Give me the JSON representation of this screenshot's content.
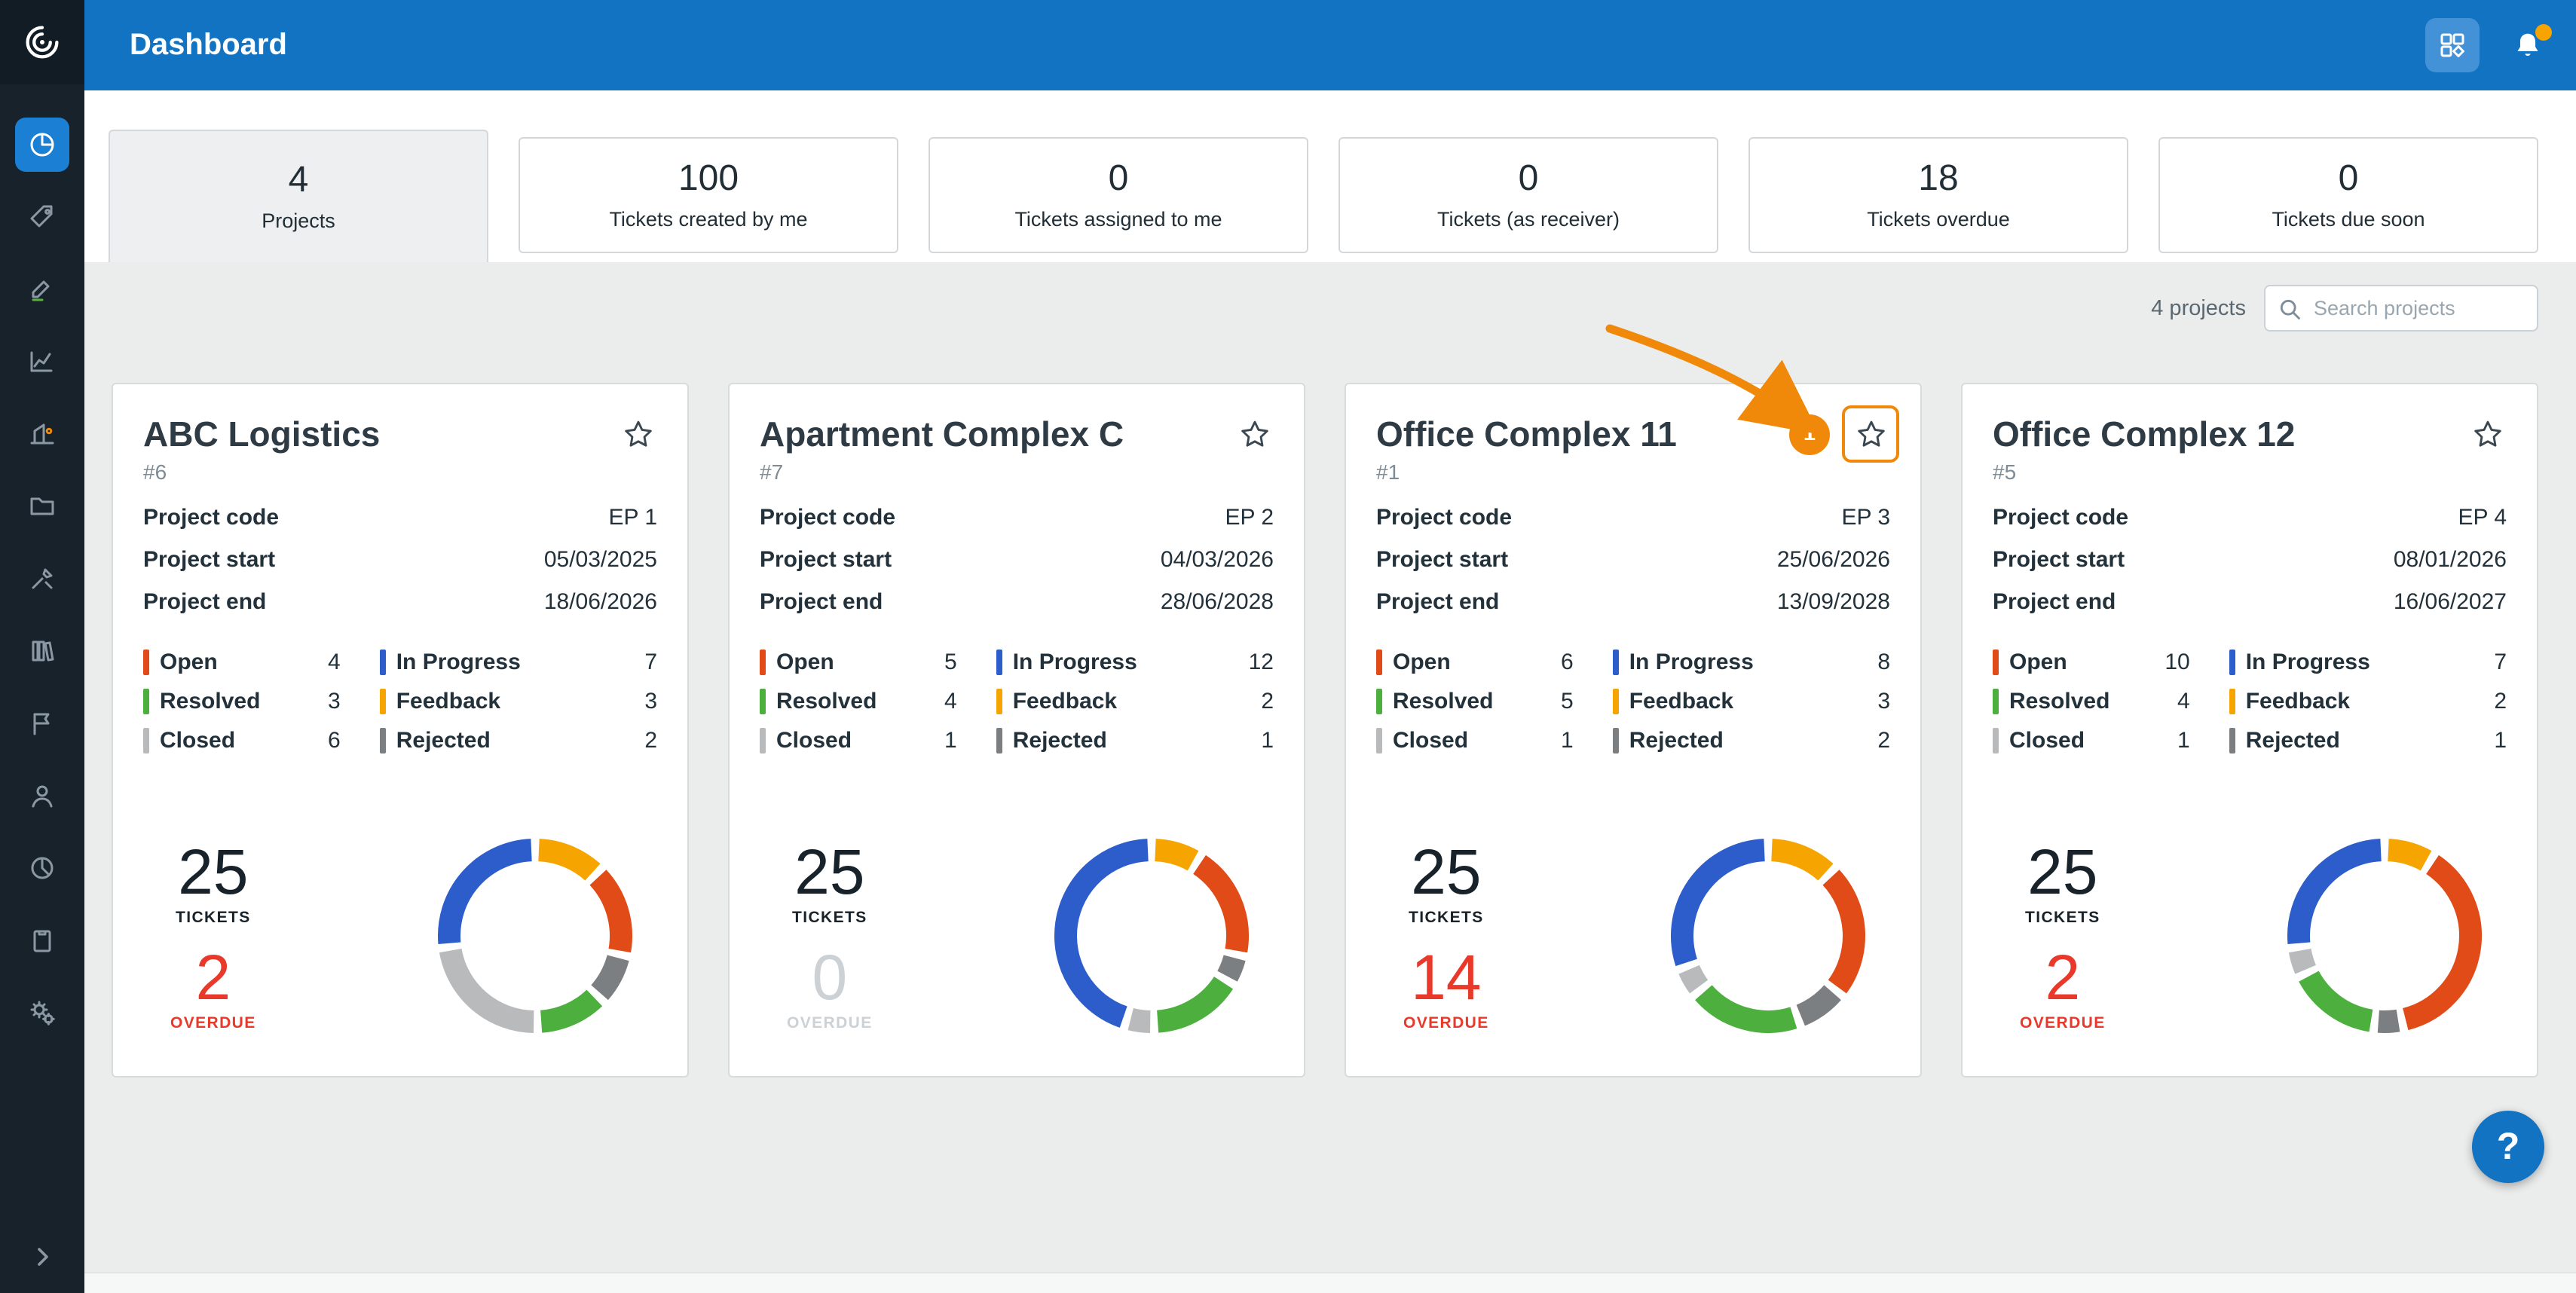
{
  "app": {
    "header_color": "#1273c2",
    "accent_orange": "#f0890a",
    "overdue_red": "#e8392a",
    "muted_gray": "#ccd1d5"
  },
  "header": {
    "title": "Dashboard",
    "icons": [
      {
        "name": "apps-icon"
      },
      {
        "name": "notifications-icon",
        "badge_dot": true
      }
    ]
  },
  "sidebar": {
    "items": [
      {
        "id": "dashboard",
        "icon": "dashboard-icon",
        "active": true
      },
      {
        "id": "tags",
        "icon": "tags-icon"
      },
      {
        "id": "tasks",
        "icon": "tasks-icon"
      },
      {
        "id": "charts",
        "icon": "chart-icon"
      },
      {
        "id": "equipment",
        "icon": "equipment-icon"
      },
      {
        "id": "documents",
        "icon": "folder-icon"
      },
      {
        "id": "tools",
        "icon": "tools-icon"
      },
      {
        "id": "library",
        "icon": "library-icon"
      },
      {
        "id": "reports",
        "icon": "flag-icon"
      },
      {
        "id": "contacts",
        "icon": "user-icon"
      },
      {
        "id": "analytics",
        "icon": "analytics-icon"
      },
      {
        "id": "forms",
        "icon": "clipboard-icon"
      },
      {
        "id": "settings",
        "icon": "settings-icon"
      }
    ],
    "expand_icon": "chevron-right-icon"
  },
  "tabs": [
    {
      "value": "4",
      "label": "Projects",
      "active": true
    },
    {
      "value": "100",
      "label": "Tickets created by me"
    },
    {
      "value": "0",
      "label": "Tickets assigned to me"
    },
    {
      "value": "0",
      "label": "Tickets (as receiver)"
    },
    {
      "value": "18",
      "label": "Tickets overdue"
    },
    {
      "value": "0",
      "label": "Tickets due soon"
    }
  ],
  "toolbar": {
    "projects_count": "4 projects",
    "search_placeholder": "Search projects"
  },
  "card_labels": {
    "code": "Project code",
    "start": "Project start",
    "end": "Project end",
    "tickets": "TICKETS",
    "overdue": "OVERDUE"
  },
  "status_meta": {
    "open": {
      "label": "Open",
      "color": "#e14b17"
    },
    "in_progress": {
      "label": "In Progress",
      "color": "#2c5dcb"
    },
    "resolved": {
      "label": "Resolved",
      "color": "#4caf3e"
    },
    "feedback": {
      "label": "Feedback",
      "color": "#f6a500"
    },
    "closed": {
      "label": "Closed",
      "color": "#b8babc"
    },
    "rejected": {
      "label": "Rejected",
      "color": "#7b7f82"
    }
  },
  "status_columns": {
    "left": [
      "open",
      "resolved",
      "closed"
    ],
    "right": [
      "in_progress",
      "feedback",
      "rejected"
    ]
  },
  "donut_order": [
    "feedback",
    "open",
    "rejected",
    "resolved",
    "closed",
    "in_progress"
  ],
  "annotation": {
    "badge": "1",
    "color": "#f0890a"
  },
  "projects": [
    {
      "title": "ABC Logistics",
      "id": "#6",
      "code": "EP 1",
      "start": "05/03/2025",
      "end": "18/06/2026",
      "counts": {
        "open": 4,
        "in_progress": 7,
        "resolved": 3,
        "feedback": 3,
        "closed": 6,
        "rejected": 2
      },
      "tickets": "25",
      "overdue": "2",
      "overdue_state": "red"
    },
    {
      "title": "Apartment Complex C",
      "id": "#7",
      "code": "EP 2",
      "start": "04/03/2026",
      "end": "28/06/2028",
      "counts": {
        "open": 5,
        "in_progress": 12,
        "resolved": 4,
        "feedback": 2,
        "closed": 1,
        "rejected": 1
      },
      "tickets": "25",
      "overdue": "0",
      "overdue_state": "muted"
    },
    {
      "title": "Office Complex 11",
      "id": "#1",
      "code": "EP 3",
      "start": "25/06/2026",
      "end": "13/09/2028",
      "counts": {
        "open": 6,
        "in_progress": 8,
        "resolved": 5,
        "feedback": 3,
        "closed": 1,
        "rejected": 2
      },
      "tickets": "25",
      "overdue": "14",
      "overdue_state": "red",
      "annotated": true
    },
    {
      "title": "Office Complex 12",
      "id": "#5",
      "code": "EP 4",
      "start": "08/01/2026",
      "end": "16/06/2027",
      "counts": {
        "open": 10,
        "in_progress": 7,
        "resolved": 4,
        "feedback": 2,
        "closed": 1,
        "rejected": 1
      },
      "tickets": "25",
      "overdue": "2",
      "overdue_state": "red"
    }
  ],
  "help": {
    "label": "?"
  }
}
